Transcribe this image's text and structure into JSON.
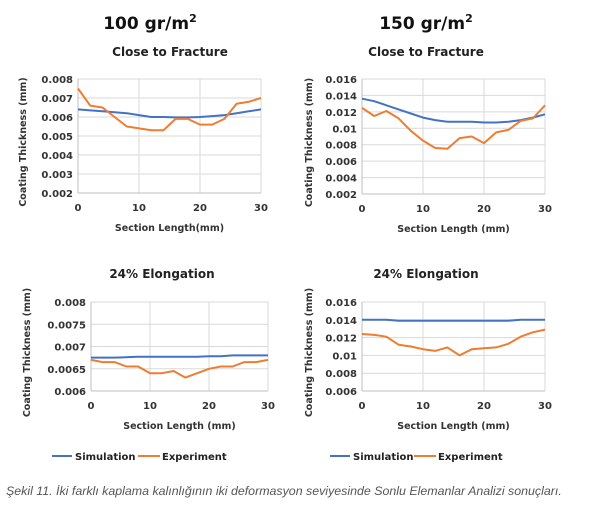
{
  "column_titles": [
    {
      "text": "100 gr/m",
      "sup": "2"
    },
    {
      "text": "150 gr/m",
      "sup": "2"
    }
  ],
  "colors": {
    "simulation": "#4472C4",
    "experiment": "#ED7D31",
    "grid": "#D9D9D9"
  },
  "legend": {
    "simulation": "Simulation",
    "experiment": "Experiment"
  },
  "caption": "Şekil 11. İki farklı kaplama kalınlığının iki deformasyon seviyesinde Sonlu Elemanlar Analizi sonuçları.",
  "chart_data": [
    {
      "id": "c1",
      "type": "line",
      "title": "Close to Fracture",
      "xlabel": "Section Length(mm)",
      "ylabel": "Coating Thickness (mm)",
      "xlim": [
        0,
        30
      ],
      "xticks": [
        0,
        10,
        20,
        30
      ],
      "xtick_labels": [
        "0",
        "10",
        "20",
        "30"
      ],
      "ylim": [
        0.002,
        0.008
      ],
      "yticks": [
        0.002,
        0.003,
        0.004,
        0.005,
        0.006,
        0.007,
        0.008
      ],
      "ytick_labels": [
        "0.002",
        "0.003",
        "0.004",
        "0.005",
        "0.006",
        "0.007",
        "0.008"
      ],
      "grid": true,
      "x": [
        0,
        2,
        4,
        6,
        8,
        10,
        12,
        14,
        16,
        18,
        20,
        22,
        24,
        26,
        28,
        30
      ],
      "series": [
        {
          "name": "Simulation",
          "values": [
            0.0064,
            0.00635,
            0.0063,
            0.00625,
            0.0062,
            0.0061,
            0.006,
            0.006,
            0.00598,
            0.00598,
            0.006,
            0.00605,
            0.0061,
            0.0062,
            0.0063,
            0.0064
          ]
        },
        {
          "name": "Experiment",
          "values": [
            0.0075,
            0.0066,
            0.0065,
            0.006,
            0.0055,
            0.0054,
            0.0053,
            0.0053,
            0.0059,
            0.0059,
            0.0056,
            0.0056,
            0.0059,
            0.0067,
            0.0068,
            0.007
          ]
        }
      ]
    },
    {
      "id": "c2",
      "type": "line",
      "title": "Close to Fracture",
      "xlabel": "Section Length (mm)",
      "ylabel": "Coating Thickness (mm)",
      "xlim": [
        0,
        30
      ],
      "xticks": [
        0,
        10,
        20,
        30
      ],
      "xtick_labels": [
        "0",
        "10",
        "20",
        "30"
      ],
      "ylim": [
        0.002,
        0.016
      ],
      "yticks": [
        0.002,
        0.004,
        0.006,
        0.008,
        0.01,
        0.012,
        0.014,
        0.016
      ],
      "ytick_labels": [
        "0.002",
        "0.004",
        "0.006",
        "0.008",
        "0.01",
        "0.012",
        "0.014",
        "0.016"
      ],
      "grid": true,
      "x": [
        0,
        2,
        4,
        6,
        8,
        10,
        12,
        14,
        16,
        18,
        20,
        22,
        24,
        26,
        28,
        30
      ],
      "series": [
        {
          "name": "Simulation",
          "values": [
            0.0136,
            0.0133,
            0.0128,
            0.0123,
            0.0118,
            0.0113,
            0.011,
            0.0108,
            0.0108,
            0.0108,
            0.0107,
            0.0107,
            0.0108,
            0.011,
            0.0113,
            0.0117
          ]
        },
        {
          "name": "Experiment",
          "values": [
            0.0125,
            0.0115,
            0.0121,
            0.0112,
            0.0097,
            0.0085,
            0.0076,
            0.0075,
            0.0088,
            0.009,
            0.0082,
            0.0095,
            0.0098,
            0.0109,
            0.0112,
            0.0128
          ]
        }
      ]
    },
    {
      "id": "c3",
      "type": "line",
      "title": "24% Elongation",
      "xlabel": "Section Length (mm)",
      "ylabel": "Coating Thickness (mm)",
      "xlim": [
        0,
        30
      ],
      "xticks": [
        0,
        10,
        20,
        30
      ],
      "xtick_labels": [
        "0",
        "10",
        "20",
        "30"
      ],
      "ylim": [
        0.006,
        0.008
      ],
      "yticks": [
        0.006,
        0.0065,
        0.007,
        0.0075,
        0.008
      ],
      "ytick_labels": [
        "0.006",
        "0.0065",
        "0.007",
        "0.0075",
        "0.008"
      ],
      "grid": true,
      "x": [
        0,
        2,
        4,
        6,
        8,
        10,
        12,
        14,
        16,
        18,
        20,
        22,
        24,
        26,
        28,
        30
      ],
      "series": [
        {
          "name": "Simulation",
          "values": [
            0.00675,
            0.00675,
            0.00675,
            0.00676,
            0.00677,
            0.00677,
            0.00677,
            0.00677,
            0.00677,
            0.00677,
            0.00678,
            0.00678,
            0.0068,
            0.0068,
            0.0068,
            0.0068
          ]
        },
        {
          "name": "Experiment",
          "values": [
            0.0067,
            0.00665,
            0.00665,
            0.00655,
            0.00655,
            0.0064,
            0.0064,
            0.00645,
            0.0063,
            0.0064,
            0.0065,
            0.00655,
            0.00655,
            0.00665,
            0.00665,
            0.0067
          ]
        }
      ]
    },
    {
      "id": "c4",
      "type": "line",
      "title": "24% Elongation",
      "xlabel": "Section Length (mm)",
      "ylabel": "Coating Thickness (mm)",
      "xlim": [
        0,
        30
      ],
      "xticks": [
        0,
        10,
        20,
        30
      ],
      "xtick_labels": [
        "0",
        "10",
        "20",
        "30"
      ],
      "ylim": [
        0.006,
        0.016
      ],
      "yticks": [
        0.006,
        0.008,
        0.01,
        0.012,
        0.014,
        0.016
      ],
      "ytick_labels": [
        "0.006",
        "0.008",
        "0.01",
        "0.012",
        "0.014",
        "0.016"
      ],
      "grid": true,
      "x": [
        0,
        2,
        4,
        6,
        8,
        10,
        12,
        14,
        16,
        18,
        20,
        22,
        24,
        26,
        28,
        30
      ],
      "series": [
        {
          "name": "Simulation",
          "values": [
            0.014,
            0.014,
            0.014,
            0.0139,
            0.0139,
            0.0139,
            0.0139,
            0.0139,
            0.0139,
            0.0139,
            0.0139,
            0.0139,
            0.0139,
            0.014,
            0.014,
            0.014
          ]
        },
        {
          "name": "Experiment",
          "values": [
            0.0124,
            0.0123,
            0.0121,
            0.0112,
            0.011,
            0.0107,
            0.0105,
            0.0109,
            0.01,
            0.0107,
            0.0108,
            0.0109,
            0.0113,
            0.0121,
            0.0126,
            0.0129
          ]
        }
      ]
    }
  ]
}
